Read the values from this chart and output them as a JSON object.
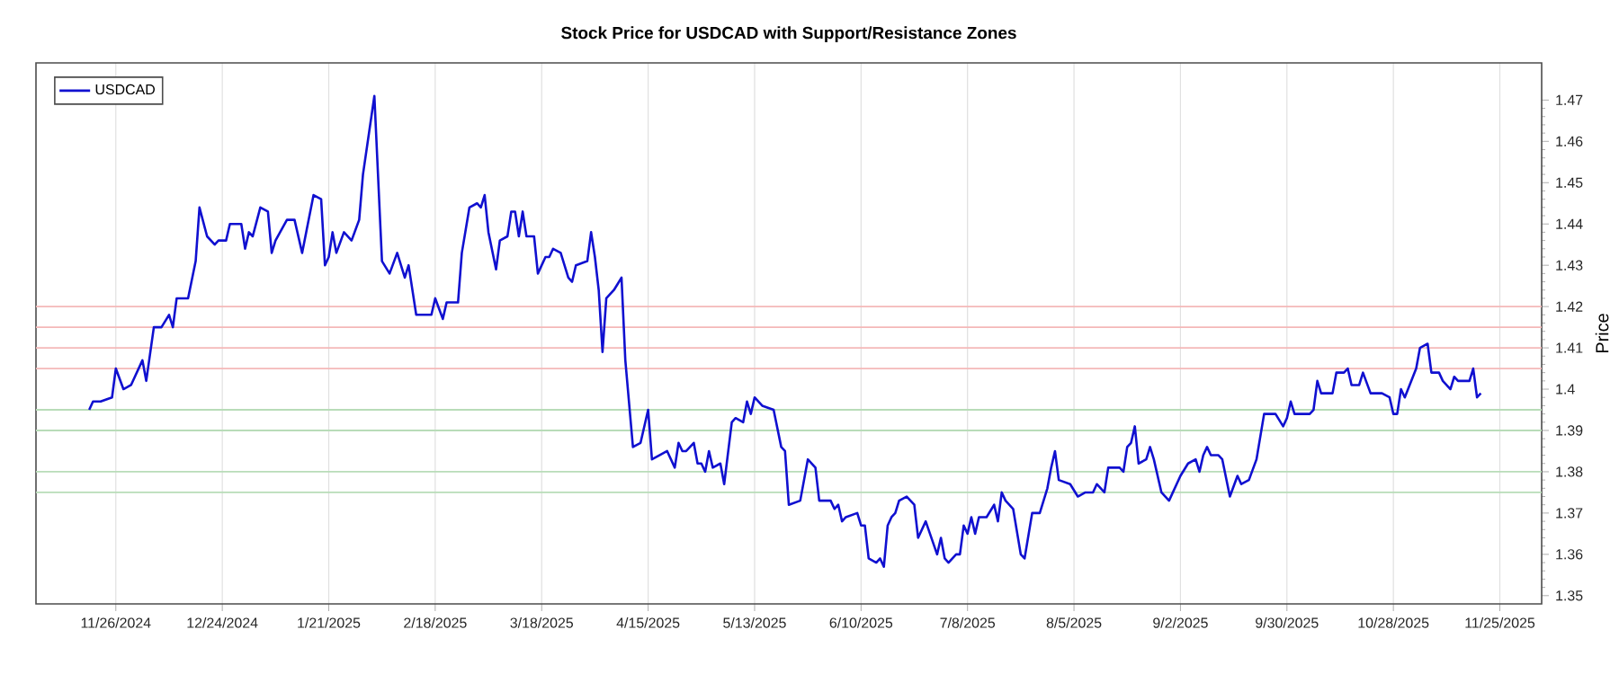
{
  "chart_data": {
    "type": "line",
    "title": "Stock Price for USDCAD with Support/Resistance Zones",
    "ylabel": "Price",
    "xlim": [
      "2024-11-05",
      "2025-12-06"
    ],
    "ylim": [
      1.348,
      1.479
    ],
    "xticks": [
      {
        "value": "2024-11-26",
        "label": "11/26/2024"
      },
      {
        "value": "2024-12-24",
        "label": "12/24/2024"
      },
      {
        "value": "2025-01-21",
        "label": "1/21/2025"
      },
      {
        "value": "2025-02-18",
        "label": "2/18/2025"
      },
      {
        "value": "2025-03-18",
        "label": "3/18/2025"
      },
      {
        "value": "2025-04-15",
        "label": "4/15/2025"
      },
      {
        "value": "2025-05-13",
        "label": "5/13/2025"
      },
      {
        "value": "2025-06-10",
        "label": "6/10/2025"
      },
      {
        "value": "2025-07-08",
        "label": "7/8/2025"
      },
      {
        "value": "2025-08-05",
        "label": "8/5/2025"
      },
      {
        "value": "2025-09-02",
        "label": "9/2/2025"
      },
      {
        "value": "2025-09-30",
        "label": "9/30/2025"
      },
      {
        "value": "2025-10-28",
        "label": "10/28/2025"
      },
      {
        "value": "2025-11-25",
        "label": "11/25/2025"
      }
    ],
    "yticks": [
      1.35,
      1.36,
      1.37,
      1.38,
      1.39,
      1.4,
      1.41,
      1.42,
      1.43,
      1.44,
      1.45,
      1.46,
      1.47
    ],
    "grid": "x",
    "legend": "top left",
    "ref_lines": [
      {
        "axis": "y",
        "value": 1.42,
        "color": "#f4b8b8"
      },
      {
        "axis": "y",
        "value": 1.415,
        "color": "#f4b8b8"
      },
      {
        "axis": "y",
        "value": 1.41,
        "color": "#f4b8b8"
      },
      {
        "axis": "y",
        "value": 1.405,
        "color": "#f4b8b8"
      },
      {
        "axis": "y",
        "value": 1.395,
        "color": "#b8dcb8"
      },
      {
        "axis": "y",
        "value": 1.39,
        "color": "#b8dcb8"
      },
      {
        "axis": "y",
        "value": 1.38,
        "color": "#b8dcb8"
      },
      {
        "axis": "y",
        "value": 1.375,
        "color": "#b8dcb8"
      }
    ],
    "series": [
      {
        "name": "USDCAD",
        "color": "#1010d0",
        "x": [
          "2024-11-19",
          "2024-11-20",
          "2024-11-22",
          "2024-11-25",
          "2024-11-26",
          "2024-11-28",
          "2024-11-30",
          "2024-12-03",
          "2024-12-04",
          "2024-12-06",
          "2024-12-08",
          "2024-12-10",
          "2024-12-11",
          "2024-12-12",
          "2024-12-15",
          "2024-12-17",
          "2024-12-18",
          "2024-12-20",
          "2024-12-22",
          "2024-12-23",
          "2024-12-25",
          "2024-12-26",
          "2024-12-29",
          "2024-12-30",
          "2024-12-31",
          "2025-01-01",
          "2025-01-03",
          "2025-01-05",
          "2025-01-06",
          "2025-01-07",
          "2025-01-10",
          "2025-01-12",
          "2025-01-14",
          "2025-01-17",
          "2025-01-19",
          "2025-01-20",
          "2025-01-21",
          "2025-01-22",
          "2025-01-23",
          "2025-01-25",
          "2025-01-27",
          "2025-01-29",
          "2025-01-30",
          "2025-02-02",
          "2025-02-04",
          "2025-02-06",
          "2025-02-08",
          "2025-02-10",
          "2025-02-11",
          "2025-02-13",
          "2025-02-17",
          "2025-02-18",
          "2025-02-20",
          "2025-02-21",
          "2025-02-24",
          "2025-02-25",
          "2025-02-27",
          "2025-03-01",
          "2025-03-02",
          "2025-03-03",
          "2025-03-04",
          "2025-03-06",
          "2025-03-07",
          "2025-03-09",
          "2025-03-10",
          "2025-03-11",
          "2025-03-12",
          "2025-03-13",
          "2025-03-14",
          "2025-03-16",
          "2025-03-17",
          "2025-03-19",
          "2025-03-20",
          "2025-03-21",
          "2025-03-23",
          "2025-03-25",
          "2025-03-26",
          "2025-03-27",
          "2025-03-30",
          "2025-03-31",
          "2025-04-01",
          "2025-04-02",
          "2025-04-03",
          "2025-04-04",
          "2025-04-06",
          "2025-04-08",
          "2025-04-09",
          "2025-04-11",
          "2025-04-13",
          "2025-04-15",
          "2025-04-16",
          "2025-04-18",
          "2025-04-20",
          "2025-04-22",
          "2025-04-23",
          "2025-04-24",
          "2025-04-25",
          "2025-04-27",
          "2025-04-28",
          "2025-04-29",
          "2025-04-30",
          "2025-05-01",
          "2025-05-02",
          "2025-05-04",
          "2025-05-05",
          "2025-05-07",
          "2025-05-08",
          "2025-05-10",
          "2025-05-11",
          "2025-05-12",
          "2025-05-13",
          "2025-05-15",
          "2025-05-18",
          "2025-05-20",
          "2025-05-21",
          "2025-05-22",
          "2025-05-25",
          "2025-05-27",
          "2025-05-29",
          "2025-05-30",
          "2025-06-02",
          "2025-06-03",
          "2025-06-04",
          "2025-06-05",
          "2025-06-06",
          "2025-06-09",
          "2025-06-10",
          "2025-06-11",
          "2025-06-12",
          "2025-06-14",
          "2025-06-15",
          "2025-06-16",
          "2025-06-17",
          "2025-06-18",
          "2025-06-19",
          "2025-06-20",
          "2025-06-22",
          "2025-06-24",
          "2025-06-25",
          "2025-06-27",
          "2025-06-30",
          "2025-07-01",
          "2025-07-02",
          "2025-07-03",
          "2025-07-05",
          "2025-07-06",
          "2025-07-07",
          "2025-07-08",
          "2025-07-09",
          "2025-07-10",
          "2025-07-11",
          "2025-07-13",
          "2025-07-15",
          "2025-07-16",
          "2025-07-17",
          "2025-07-18",
          "2025-07-20",
          "2025-07-22",
          "2025-07-23",
          "2025-07-25",
          "2025-07-27",
          "2025-07-29",
          "2025-07-30",
          "2025-07-31",
          "2025-08-01",
          "2025-08-04",
          "2025-08-06",
          "2025-08-08",
          "2025-08-10",
          "2025-08-11",
          "2025-08-13",
          "2025-08-14",
          "2025-08-17",
          "2025-08-18",
          "2025-08-19",
          "2025-08-20",
          "2025-08-21",
          "2025-08-22",
          "2025-08-24",
          "2025-08-25",
          "2025-08-26",
          "2025-08-28",
          "2025-08-30",
          "2025-09-02",
          "2025-09-04",
          "2025-09-06",
          "2025-09-07",
          "2025-09-08",
          "2025-09-09",
          "2025-09-10",
          "2025-09-12",
          "2025-09-13",
          "2025-09-15",
          "2025-09-17",
          "2025-09-18",
          "2025-09-20",
          "2025-09-22",
          "2025-09-24",
          "2025-09-27",
          "2025-09-29",
          "2025-09-30",
          "2025-10-01",
          "2025-10-02",
          "2025-10-05",
          "2025-10-06",
          "2025-10-07",
          "2025-10-08",
          "2025-10-09",
          "2025-10-12",
          "2025-10-13",
          "2025-10-15",
          "2025-10-16",
          "2025-10-17",
          "2025-10-19",
          "2025-10-20",
          "2025-10-22",
          "2025-10-25",
          "2025-10-27",
          "2025-10-28",
          "2025-10-29",
          "2025-10-30",
          "2025-10-31",
          "2025-11-03",
          "2025-11-04",
          "2025-11-06",
          "2025-11-07",
          "2025-11-09",
          "2025-11-10",
          "2025-11-12",
          "2025-11-13",
          "2025-11-14",
          "2025-11-17",
          "2025-11-18",
          "2025-11-19",
          "2025-11-20"
        ],
        "values": [
          1.395,
          1.397,
          1.397,
          1.398,
          1.405,
          1.4,
          1.401,
          1.407,
          1.402,
          1.415,
          1.415,
          1.418,
          1.415,
          1.422,
          1.422,
          1.431,
          1.444,
          1.437,
          1.435,
          1.436,
          1.436,
          1.44,
          1.44,
          1.434,
          1.438,
          1.437,
          1.444,
          1.443,
          1.433,
          1.436,
          1.441,
          1.441,
          1.433,
          1.447,
          1.446,
          1.43,
          1.432,
          1.438,
          1.433,
          1.438,
          1.436,
          1.441,
          1.452,
          1.471,
          1.431,
          1.428,
          1.433,
          1.427,
          1.43,
          1.418,
          1.418,
          1.422,
          1.417,
          1.421,
          1.421,
          1.433,
          1.444,
          1.445,
          1.444,
          1.447,
          1.438,
          1.429,
          1.436,
          1.437,
          1.443,
          1.443,
          1.437,
          1.443,
          1.437,
          1.437,
          1.428,
          1.432,
          1.432,
          1.434,
          1.433,
          1.427,
          1.426,
          1.43,
          1.431,
          1.438,
          1.432,
          1.424,
          1.409,
          1.422,
          1.424,
          1.427,
          1.407,
          1.386,
          1.387,
          1.395,
          1.383,
          1.384,
          1.385,
          1.381,
          1.387,
          1.385,
          1.385,
          1.387,
          1.382,
          1.382,
          1.38,
          1.385,
          1.381,
          1.382,
          1.377,
          1.392,
          1.393,
          1.392,
          1.397,
          1.394,
          1.398,
          1.396,
          1.395,
          1.386,
          1.385,
          1.372,
          1.373,
          1.383,
          1.381,
          1.373,
          1.373,
          1.371,
          1.372,
          1.368,
          1.369,
          1.37,
          1.367,
          1.367,
          1.359,
          1.358,
          1.359,
          1.357,
          1.367,
          1.369,
          1.37,
          1.373,
          1.374,
          1.372,
          1.364,
          1.368,
          1.36,
          1.364,
          1.359,
          1.358,
          1.36,
          1.36,
          1.367,
          1.365,
          1.369,
          1.365,
          1.369,
          1.369,
          1.372,
          1.368,
          1.375,
          1.373,
          1.371,
          1.36,
          1.359,
          1.37,
          1.37,
          1.376,
          1.381,
          1.385,
          1.378,
          1.377,
          1.374,
          1.375,
          1.375,
          1.377,
          1.375,
          1.381,
          1.381,
          1.38,
          1.386,
          1.387,
          1.391,
          1.382,
          1.383,
          1.386,
          1.383,
          1.375,
          1.373,
          1.379,
          1.382,
          1.383,
          1.38,
          1.384,
          1.386,
          1.384,
          1.384,
          1.383,
          1.374,
          1.379,
          1.377,
          1.378,
          1.383,
          1.394,
          1.394,
          1.391,
          1.393,
          1.397,
          1.394,
          1.394,
          1.394,
          1.395,
          1.402,
          1.399,
          1.399,
          1.404,
          1.404,
          1.405,
          1.401,
          1.401,
          1.404,
          1.399,
          1.399,
          1.398,
          1.394,
          1.394,
          1.4,
          1.398,
          1.405,
          1.41,
          1.411,
          1.404,
          1.404,
          1.402,
          1.4,
          1.403,
          1.402,
          1.402,
          1.405,
          1.398,
          1.399
        ]
      }
    ]
  }
}
